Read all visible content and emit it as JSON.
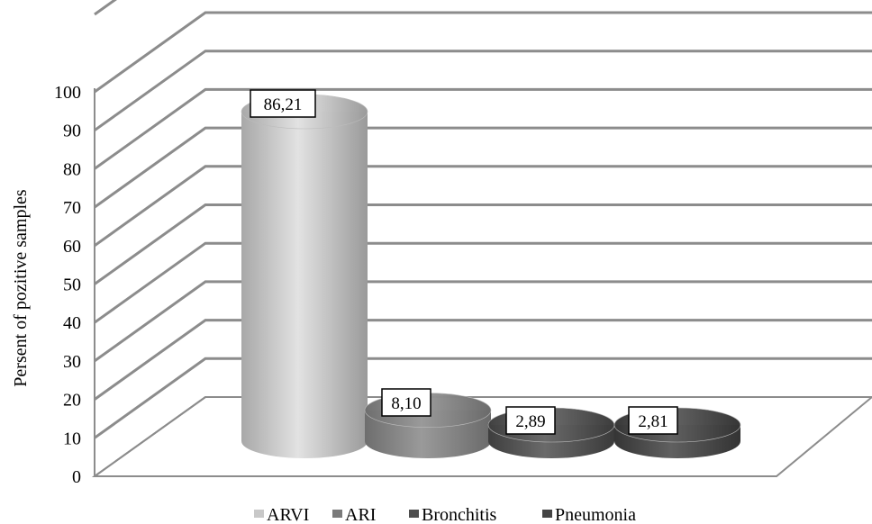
{
  "chart_data": {
    "type": "bar",
    "style": "3d-cylinder",
    "categories": [
      "ARVI",
      "ARI",
      "Bronchitis",
      "Pneumonia"
    ],
    "values": [
      86.21,
      8.1,
      2.89,
      2.81
    ],
    "value_labels": [
      "86,21",
      "8,10",
      "2,89",
      "2,81"
    ],
    "ylabel": "Persent of pozitive samples",
    "ylim": [
      0,
      100
    ],
    "yticks": [
      "0",
      "10",
      "20",
      "30",
      "40",
      "50",
      "60",
      "70",
      "80",
      "90",
      "100"
    ],
    "grid": true,
    "legend_position": "bottom",
    "colors": {
      "ARVI": "#c0c0c0",
      "ARI": "#808080",
      "Bronchitis": "#555555",
      "Pneumonia": "#4a4a4a",
      "grid": "#8c8c8c"
    }
  }
}
